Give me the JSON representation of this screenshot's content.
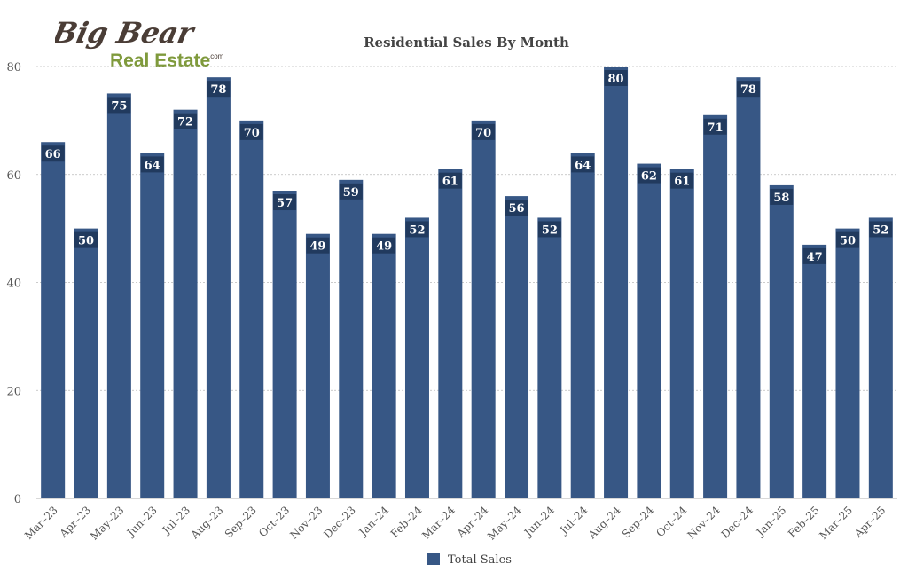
{
  "logo": {
    "line1": "Big Bear",
    "line2": "Real Estate",
    "suffix": ".com",
    "color_dark": "#4a3d36",
    "color_green": "#7f9a3c"
  },
  "chart_data": {
    "type": "bar",
    "title": "Residential Sales By Month",
    "xlabel": "",
    "ylabel": "",
    "categories": [
      "Mar-23",
      "Apr-23",
      "May-23",
      "Jun-23",
      "Jul-23",
      "Aug-23",
      "Sep-23",
      "Oct-23",
      "Nov-23",
      "Dec-23",
      "Jan-24",
      "Feb-24",
      "Mar-24",
      "Apr-24",
      "May-24",
      "Jun-24",
      "Jul-24",
      "Aug-24",
      "Sep-24",
      "Oct-24",
      "Nov-24",
      "Dec-24",
      "Jan-25",
      "Feb-25",
      "Mar-25",
      "Apr-25"
    ],
    "series": [
      {
        "name": "Total Sales",
        "values": [
          66,
          50,
          75,
          64,
          72,
          78,
          70,
          57,
          49,
          59,
          49,
          52,
          61,
          70,
          56,
          52,
          64,
          80,
          62,
          61,
          71,
          78,
          58,
          47,
          50,
          52
        ]
      }
    ],
    "ylim": [
      0,
      80
    ],
    "yticks": [
      0,
      20,
      40,
      60,
      80
    ],
    "grid": true,
    "data_labels": true,
    "legend": "bottom",
    "bar_color": "#375785"
  }
}
